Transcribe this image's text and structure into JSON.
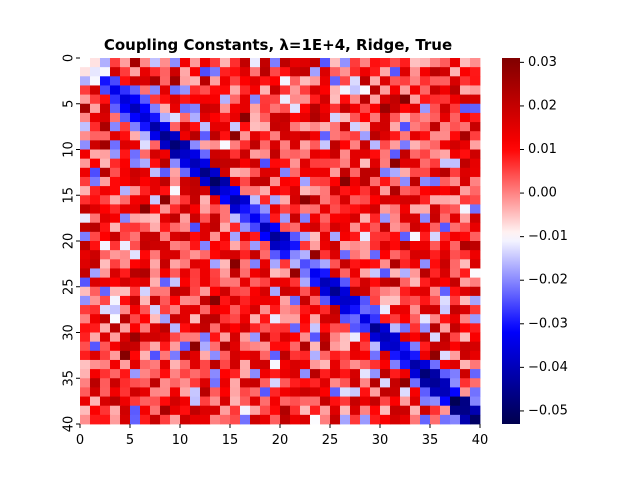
{
  "chart_data": {
    "type": "heatmap",
    "title": "Coupling Constants, λ=1E+4, Ridge, True",
    "xlabel": "",
    "ylabel": "",
    "n": 40,
    "x_ticks": [
      "0",
      "5",
      "10",
      "15",
      "20",
      "25",
      "30",
      "35",
      "40"
    ],
    "y_ticks": [
      "0",
      "5",
      "10",
      "15",
      "20",
      "25",
      "30",
      "35",
      "40"
    ],
    "colorbar": {
      "colormap": "seismic",
      "vmin": -0.053,
      "vmax": 0.031,
      "center": -0.01,
      "ticks": [
        "0.03",
        "0.02",
        "0.01",
        "0.00",
        "−0.01",
        "−0.02",
        "−0.03",
        "−0.04",
        "−0.05"
      ],
      "tick_values": [
        0.03,
        0.02,
        0.01,
        0.0,
        -0.01,
        -0.02,
        -0.03,
        -0.04,
        -0.05
      ]
    },
    "structure": "symmetric 40x40 matrix; strong negative couplings (about -0.02 to -0.05, blue) on and near the diagonal, mostly positive couplings (about 0.00 to 0.02, red) off-diagonal",
    "approx_diagonal_values": [
      -0.01,
      -0.012,
      -0.03,
      -0.034,
      -0.036,
      -0.04,
      -0.036,
      -0.042,
      -0.045,
      -0.048,
      -0.038,
      -0.04,
      -0.046,
      -0.05,
      -0.036,
      -0.042,
      -0.03,
      -0.033,
      -0.04,
      -0.044,
      -0.036,
      -0.02,
      -0.025,
      -0.033,
      -0.04,
      -0.045,
      -0.038,
      -0.03,
      -0.035,
      -0.045,
      -0.04,
      -0.038,
      -0.035,
      -0.042,
      -0.048,
      -0.044,
      -0.04,
      -0.052,
      -0.046,
      -0.05
    ],
    "approx_offdiagonal_range": [
      -0.025,
      0.03
    ]
  }
}
